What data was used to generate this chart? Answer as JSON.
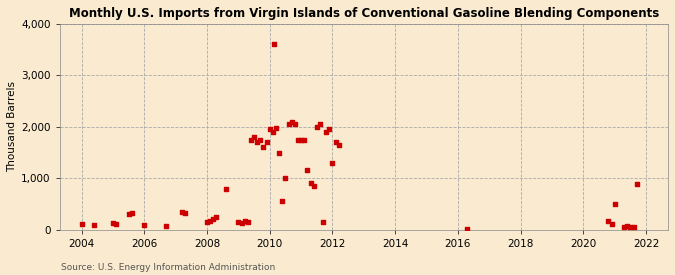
{
  "title": "Monthly U.S. Imports from Virgin Islands of Conventional Gasoline Blending Components",
  "ylabel": "Thousand Barrels",
  "source": "Source: U.S. Energy Information Administration",
  "background_color": "#faebd0",
  "plot_bg_color": "#faebd0",
  "marker_color": "#cc0000",
  "marker": "s",
  "marker_size": 3,
  "ylim": [
    0,
    4000
  ],
  "yticks": [
    0,
    1000,
    2000,
    3000,
    4000
  ],
  "xlim_start": 2003.3,
  "xlim_end": 2022.7,
  "xticks": [
    2004,
    2006,
    2008,
    2010,
    2012,
    2014,
    2016,
    2018,
    2020,
    2022
  ],
  "data_points": [
    [
      2004.0,
      120
    ],
    [
      2004.4,
      100
    ],
    [
      2005.0,
      130
    ],
    [
      2005.1,
      120
    ],
    [
      2005.5,
      310
    ],
    [
      2005.6,
      330
    ],
    [
      2006.0,
      100
    ],
    [
      2006.7,
      80
    ],
    [
      2007.2,
      350
    ],
    [
      2007.3,
      330
    ],
    [
      2008.0,
      150
    ],
    [
      2008.1,
      170
    ],
    [
      2008.2,
      200
    ],
    [
      2008.3,
      250
    ],
    [
      2008.6,
      800
    ],
    [
      2009.0,
      160
    ],
    [
      2009.1,
      130
    ],
    [
      2009.2,
      170
    ],
    [
      2009.3,
      160
    ],
    [
      2009.4,
      1750
    ],
    [
      2009.5,
      1800
    ],
    [
      2009.6,
      1700
    ],
    [
      2009.7,
      1750
    ],
    [
      2009.8,
      1600
    ],
    [
      2009.9,
      1700
    ],
    [
      2010.0,
      1950
    ],
    [
      2010.1,
      1900
    ],
    [
      2010.15,
      3600
    ],
    [
      2010.2,
      1970
    ],
    [
      2010.3,
      1500
    ],
    [
      2010.4,
      560
    ],
    [
      2010.5,
      1000
    ],
    [
      2010.6,
      2050
    ],
    [
      2010.7,
      2100
    ],
    [
      2010.8,
      2050
    ],
    [
      2010.9,
      1750
    ],
    [
      2011.0,
      1750
    ],
    [
      2011.1,
      1750
    ],
    [
      2011.2,
      1170
    ],
    [
      2011.3,
      900
    ],
    [
      2011.4,
      850
    ],
    [
      2011.5,
      2000
    ],
    [
      2011.6,
      2050
    ],
    [
      2011.7,
      150
    ],
    [
      2011.8,
      1900
    ],
    [
      2011.9,
      1950
    ],
    [
      2012.0,
      1300
    ],
    [
      2012.1,
      1700
    ],
    [
      2012.2,
      1650
    ],
    [
      2016.3,
      20
    ],
    [
      2020.8,
      170
    ],
    [
      2020.9,
      120
    ],
    [
      2021.0,
      500
    ],
    [
      2021.3,
      50
    ],
    [
      2021.4,
      70
    ],
    [
      2021.5,
      60
    ],
    [
      2021.6,
      60
    ],
    [
      2021.7,
      880
    ]
  ]
}
